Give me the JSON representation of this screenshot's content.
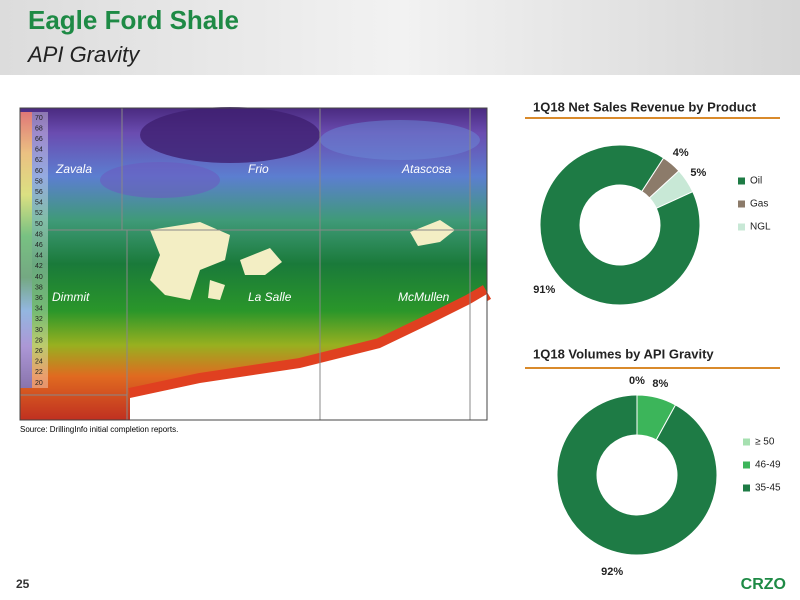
{
  "header": {
    "title": "Eagle Ford Shale",
    "subtitle": "API Gravity"
  },
  "map": {
    "scale_labels": [
      70,
      68,
      66,
      64,
      62,
      60,
      58,
      56,
      54,
      52,
      50,
      48,
      46,
      44,
      42,
      40,
      38,
      36,
      34,
      32,
      30,
      28,
      26,
      24,
      22,
      20
    ],
    "counties": [
      "Zavala",
      "Frio",
      "Atascosa",
      "Dimmit",
      "La Salle",
      "McMullen"
    ],
    "source": "Source:  DrillingInfo initial completion reports."
  },
  "chart_data": [
    {
      "type": "donut",
      "title": "1Q18 Net Sales Revenue by Product",
      "categories": [
        "Oil",
        "Gas",
        "NGL"
      ],
      "values": [
        91,
        4,
        5
      ],
      "value_labels": [
        "91%",
        "4%",
        "5%"
      ],
      "colors": [
        "#1e7b45",
        "#8c7b6a",
        "#c8e8d6"
      ]
    },
    {
      "type": "donut",
      "title": "1Q18 Volumes by API Gravity",
      "categories": [
        "≥ 50",
        "46-49",
        "35-45"
      ],
      "values": [
        0,
        8,
        92
      ],
      "value_labels": [
        "0%",
        "8%",
        "92%"
      ],
      "colors": [
        "#a6e0b0",
        "#3cb55a",
        "#1e7b45"
      ]
    }
  ],
  "footer": {
    "page": "25",
    "brand": "CRZO"
  }
}
